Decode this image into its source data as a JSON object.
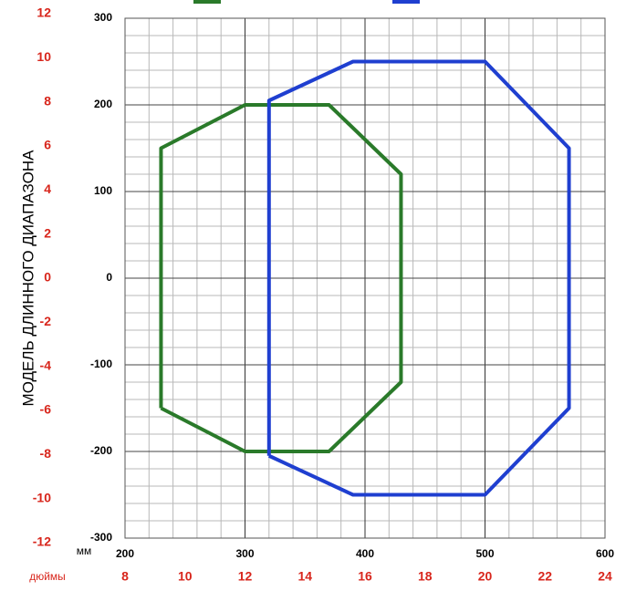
{
  "chart_data": {
    "type": "line",
    "ylabel": "МОДЕЛЬ ДЛИННОГО ДИАПАЗОНА",
    "xunit": "мм",
    "x2unit": "дюймы",
    "xlim": [
      200,
      600
    ],
    "xticks": [
      200,
      300,
      400,
      500,
      600
    ],
    "ylim": [
      -300,
      300
    ],
    "yticks": [
      -300,
      -200,
      -100,
      0,
      100,
      200,
      300
    ],
    "x2lim": [
      8,
      24
    ],
    "x2ticks": [
      8,
      10,
      12,
      14,
      16,
      18,
      20,
      22,
      24
    ],
    "y2lim": [
      -12,
      12
    ],
    "y2ticks": [
      -12,
      -10,
      -8,
      -6,
      -4,
      -2,
      0,
      2,
      4,
      6,
      8,
      10,
      12
    ],
    "grid": true,
    "series": [
      {
        "color": "#2a7a2a",
        "x": [
          230,
          230,
          300,
          370,
          430,
          430,
          370,
          300,
          230
        ],
        "values": [
          -150,
          150,
          200,
          200,
          120,
          -120,
          -200,
          -200,
          -150
        ]
      },
      {
        "color": "#1f3fd0",
        "x": [
          320,
          320,
          390,
          500,
          570,
          570,
          500,
          390,
          320
        ],
        "values": [
          -205,
          205,
          250,
          250,
          150,
          -150,
          -250,
          -250,
          -205
        ]
      }
    ]
  }
}
